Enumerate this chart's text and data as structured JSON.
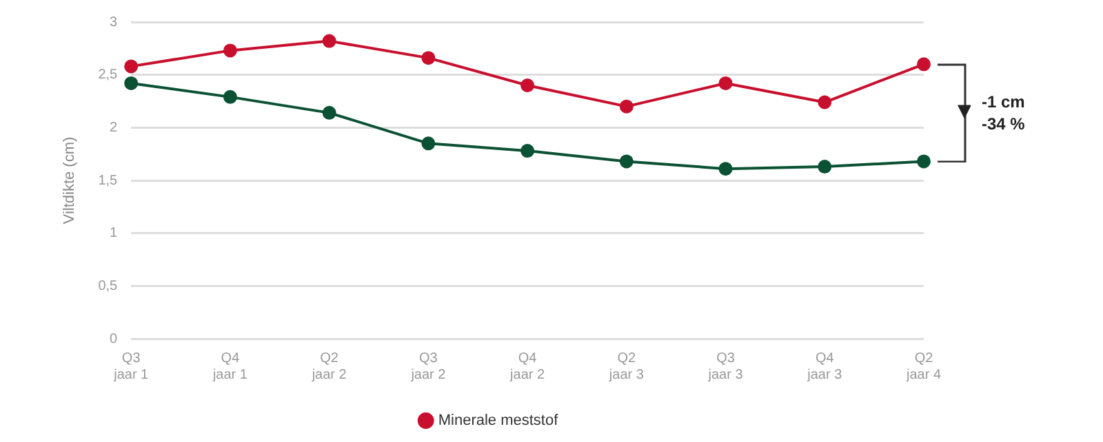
{
  "chart_data": {
    "type": "line",
    "ylabel": "Viltdikte (cm)",
    "categories": [
      "Q3\njaar 1",
      "Q4\njaar 1",
      "Q2\njaar 2",
      "Q3\njaar 2",
      "Q4\njaar 2",
      "Q2\njaar 3",
      "Q3\njaar 3",
      "Q4\njaar 3",
      "Q2\njaar 4"
    ],
    "series": [
      {
        "name": "Minerale meststof",
        "color": "#c8102e",
        "values": [
          2.58,
          2.73,
          2.82,
          2.66,
          2.4,
          2.2,
          2.42,
          2.24,
          2.6
        ]
      },
      {
        "color": "#0b5234",
        "values": [
          2.42,
          2.29,
          2.14,
          1.85,
          1.78,
          1.68,
          1.61,
          1.63,
          1.68
        ]
      }
    ],
    "ylim": [
      0,
      3
    ],
    "yticks": [
      {
        "value": 0,
        "label": "0"
      },
      {
        "value": 0.5,
        "label": "0,5"
      },
      {
        "value": 1,
        "label": "1"
      },
      {
        "value": 1.5,
        "label": "1,5"
      },
      {
        "value": 2,
        "label": "2"
      },
      {
        "value": 2.5,
        "label": "2,5"
      },
      {
        "value": 3,
        "label": "3"
      }
    ],
    "grid": "y",
    "legend": "bottom",
    "marker": "circle",
    "line_style": "solid",
    "annotations": [
      "-1 cm",
      "-34 %"
    ]
  }
}
